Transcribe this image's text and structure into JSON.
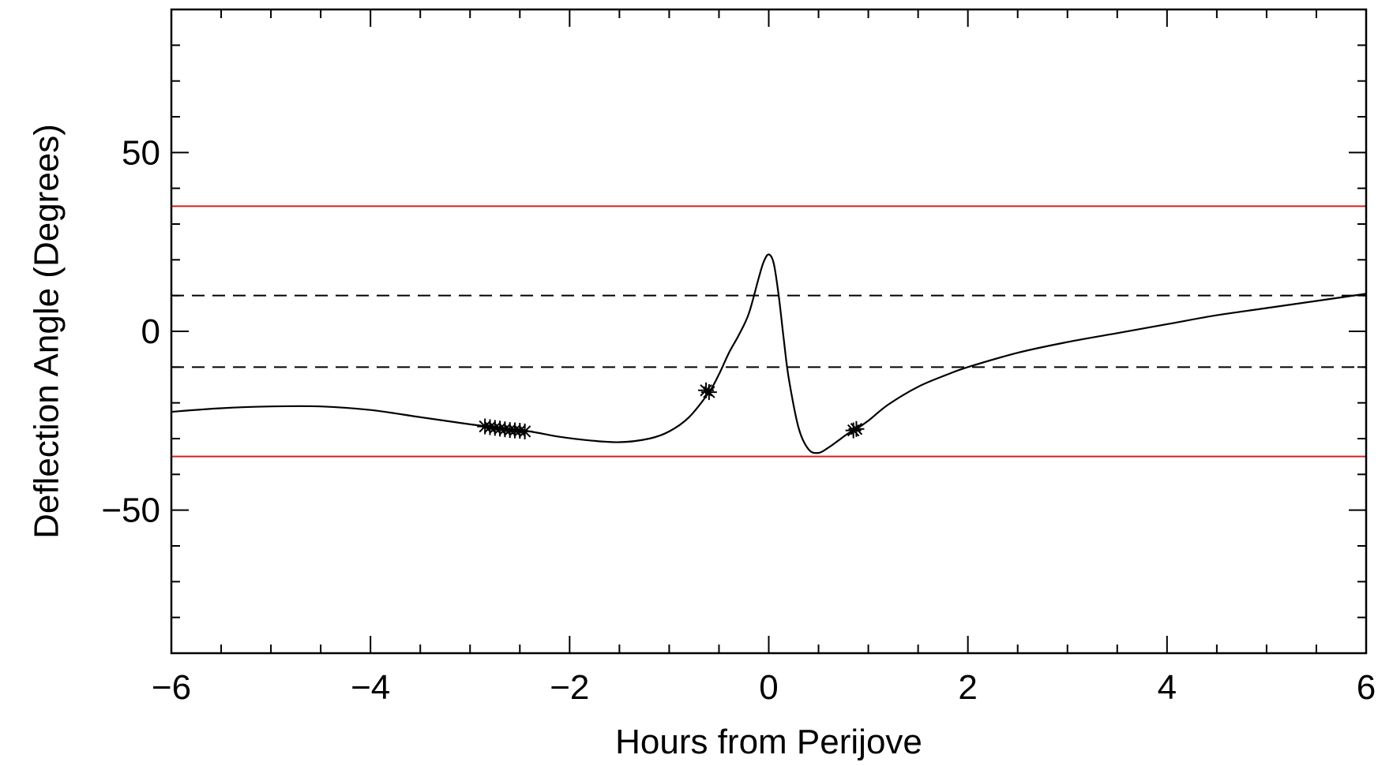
{
  "chart_data": {
    "type": "line",
    "title": "",
    "xlabel": "Hours from Perijove",
    "ylabel": "Deflection Angle (Degrees)",
    "xlim": [
      -6,
      6
    ],
    "ylim": [
      -90,
      90
    ],
    "x_ticks": [
      -6,
      -4,
      -2,
      0,
      2,
      4,
      6
    ],
    "x_tick_labels": [
      "−6",
      "−4",
      "−2",
      "0",
      "2",
      "4",
      "6"
    ],
    "x_minor_step": 0.5,
    "y_ticks": [
      -50,
      0,
      50
    ],
    "y_tick_labels": [
      "−50",
      "0",
      "50"
    ],
    "y_minor_step": 10,
    "grid": false,
    "legend": "none",
    "series": [
      {
        "style": "solid",
        "color": "#000000",
        "x": [
          -6,
          -5.5,
          -5.0,
          -4.5,
          -4.0,
          -3.5,
          -3.0,
          -2.7,
          -2.4,
          -2.1,
          -1.8,
          -1.5,
          -1.2,
          -1.0,
          -0.8,
          -0.6,
          -0.5,
          -0.4,
          -0.3,
          -0.2,
          -0.1,
          -0.05,
          0.0,
          0.05,
          0.1,
          0.15,
          0.2,
          0.3,
          0.4,
          0.5,
          0.6,
          0.7,
          0.8,
          0.87,
          1.0,
          1.2,
          1.5,
          1.8,
          2.0,
          2.5,
          3.0,
          3.5,
          4.0,
          4.5,
          5.0,
          5.5,
          6.0
        ],
        "y": [
          -22.5,
          -21.5,
          -21.0,
          -21.0,
          -22.0,
          -24.0,
          -26.0,
          -27.0,
          -28.0,
          -29.5,
          -30.5,
          -31.0,
          -30.0,
          -28.0,
          -24.0,
          -17.0,
          -12.0,
          -6.0,
          -1.0,
          5.0,
          15.0,
          19.5,
          21.5,
          19.0,
          10.0,
          -2.0,
          -13.0,
          -27.0,
          -33.0,
          -34.0,
          -32.5,
          -30.5,
          -28.5,
          -27.5,
          -25.0,
          -20.5,
          -15.5,
          -12.0,
          -10.0,
          -6.0,
          -3.0,
          -0.5,
          2.0,
          4.5,
          6.5,
          8.5,
          10.5
        ]
      }
    ],
    "markers": [
      {
        "symbol": "asterisk",
        "x": [
          -2.85,
          -2.8,
          -2.75,
          -2.7,
          -2.65,
          -2.6,
          -2.55,
          -2.5,
          -2.45
        ],
        "y": [
          -26.6,
          -26.8,
          -27.0,
          -27.2,
          -27.4,
          -27.6,
          -27.7,
          -27.8,
          -28.0
        ]
      },
      {
        "symbol": "asterisk",
        "x": [
          -0.63,
          -0.6
        ],
        "y": [
          -16.5,
          -17.0
        ]
      },
      {
        "symbol": "asterisk",
        "x": [
          0.85,
          0.88
        ],
        "y": [
          -27.7,
          -27.3
        ]
      }
    ],
    "reference_lines": [
      {
        "y": 35,
        "style": "solid",
        "color": "#d62020"
      },
      {
        "y": -35,
        "style": "solid",
        "color": "#d62020"
      },
      {
        "y": 10,
        "style": "dashed",
        "color": "#000000"
      },
      {
        "y": -10,
        "style": "dashed",
        "color": "#000000"
      }
    ]
  }
}
